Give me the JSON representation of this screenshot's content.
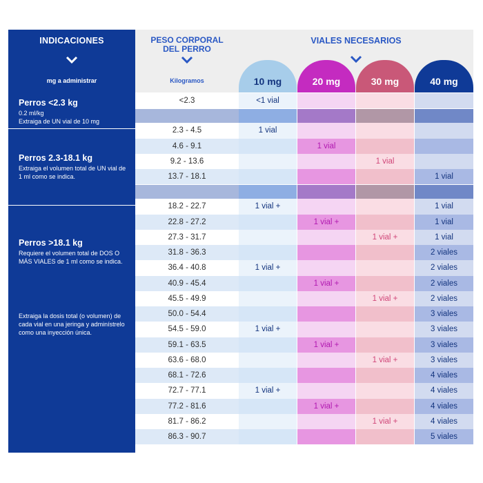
{
  "header": {
    "indicaciones": "INDICACIONES",
    "mg_label": "mg a administrar",
    "peso_line1": "PESO CORPORAL",
    "peso_line2": "DEL PERRO",
    "kg_label": "Kilogramos",
    "viales_title": "VIALES NECESARIOS",
    "columns": [
      "10 mg",
      "20 mg",
      "30 mg",
      "40 mg"
    ]
  },
  "colors": {
    "left_panel": "#0f3a97",
    "col_head_bg": [
      "#a7cdea",
      "#c42bc0",
      "#c95878",
      "#0f3a97"
    ],
    "col_head_text": [
      "#13347e",
      "#ffffff",
      "#ffffff",
      "#ffffff"
    ],
    "cell_text": [
      "#13347e",
      "#b118b0",
      "#d04678",
      "#13347e"
    ],
    "kg_alt": [
      "#ffffff",
      "#dde9f7"
    ],
    "col_alt": [
      [
        "#ebf3fb",
        "#d6e6f7"
      ],
      [
        "#f5d5f3",
        "#e796e1"
      ],
      [
        "#fadde4",
        "#f1bfcb"
      ],
      [
        "#d2dbf0",
        "#a9b9e4"
      ]
    ],
    "sep": [
      "#a7b7dc",
      "#8eaee3",
      "#a479c8",
      "#b197a6",
      "#7088c7"
    ]
  },
  "groups": [
    {
      "title": "Perros <2.3 kg",
      "desc": [
        "0.2 ml/kg",
        "Extraiga de UN vial de 10 mg"
      ],
      "rows": [
        {
          "kg": "<2.3",
          "v": [
            "<1 vial",
            "",
            "",
            ""
          ]
        }
      ]
    },
    {
      "title": "Perros 2.3-18.1 kg",
      "desc": [
        "Extraiga el volumen total de UN vial de 1 ml como se indica."
      ],
      "rows": [
        {
          "kg": "2.3 - 4.5",
          "v": [
            "1 vial",
            "",
            "",
            ""
          ]
        },
        {
          "kg": "4.6 - 9.1",
          "v": [
            "",
            "1 vial",
            "",
            ""
          ]
        },
        {
          "kg": "9.2 - 13.6",
          "v": [
            "",
            "",
            "1 vial",
            ""
          ]
        },
        {
          "kg": "13.7 - 18.1",
          "v": [
            "",
            "",
            "",
            "1 vial"
          ]
        }
      ]
    },
    {
      "title": "Perros >18.1 kg",
      "desc": [
        "Requiere el volumen total de DOS O MÁS VIALES de 1 ml como se indica."
      ],
      "desc2": "Extraiga la dosis total (o volumen) de cada vial en una jeringa y adminístrelo como una inyección única.",
      "rows": [
        {
          "kg": "18.2 - 22.7",
          "v": [
            "1 vial +",
            "",
            "",
            "1 vial"
          ]
        },
        {
          "kg": "22.8 - 27.2",
          "v": [
            "",
            "1 vial +",
            "",
            "1 vial"
          ]
        },
        {
          "kg": "27.3 - 31.7",
          "v": [
            "",
            "",
            "1 vial +",
            "1 vial"
          ]
        },
        {
          "kg": "31.8 - 36.3",
          "v": [
            "",
            "",
            "",
            "2 viales"
          ]
        },
        {
          "kg": "36.4 - 40.8",
          "v": [
            "1 vial +",
            "",
            "",
            "2 viales"
          ]
        },
        {
          "kg": "40.9 - 45.4",
          "v": [
            "",
            "1 vial +",
            "",
            "2 viales"
          ]
        },
        {
          "kg": "45.5 - 49.9",
          "v": [
            "",
            "",
            "1 vial +",
            "2 viales"
          ]
        },
        {
          "kg": "50.0 - 54.4",
          "v": [
            "",
            "",
            "",
            "3 viales"
          ]
        },
        {
          "kg": "54.5 - 59.0",
          "v": [
            "1 vial +",
            "",
            "",
            "3 viales"
          ]
        },
        {
          "kg": "59.1 - 63.5",
          "v": [
            "",
            "1 vial +",
            "",
            "3 viales"
          ]
        },
        {
          "kg": "63.6 - 68.0",
          "v": [
            "",
            "",
            "1 vial +",
            "3 viales"
          ]
        },
        {
          "kg": "68.1 - 72.6",
          "v": [
            "",
            "",
            "",
            "4 viales"
          ]
        },
        {
          "kg": "72.7 - 77.1",
          "v": [
            "1 vial +",
            "",
            "",
            "4 viales"
          ]
        },
        {
          "kg": "77.2 - 81.6",
          "v": [
            "",
            "1 vial +",
            "",
            "4 viales"
          ]
        },
        {
          "kg": "81.7 - 86.2",
          "v": [
            "",
            "",
            "1 vial +",
            "4 viales"
          ]
        },
        {
          "kg": "86.3 - 90.7",
          "v": [
            "",
            "",
            "",
            "5 viales"
          ]
        }
      ]
    }
  ]
}
